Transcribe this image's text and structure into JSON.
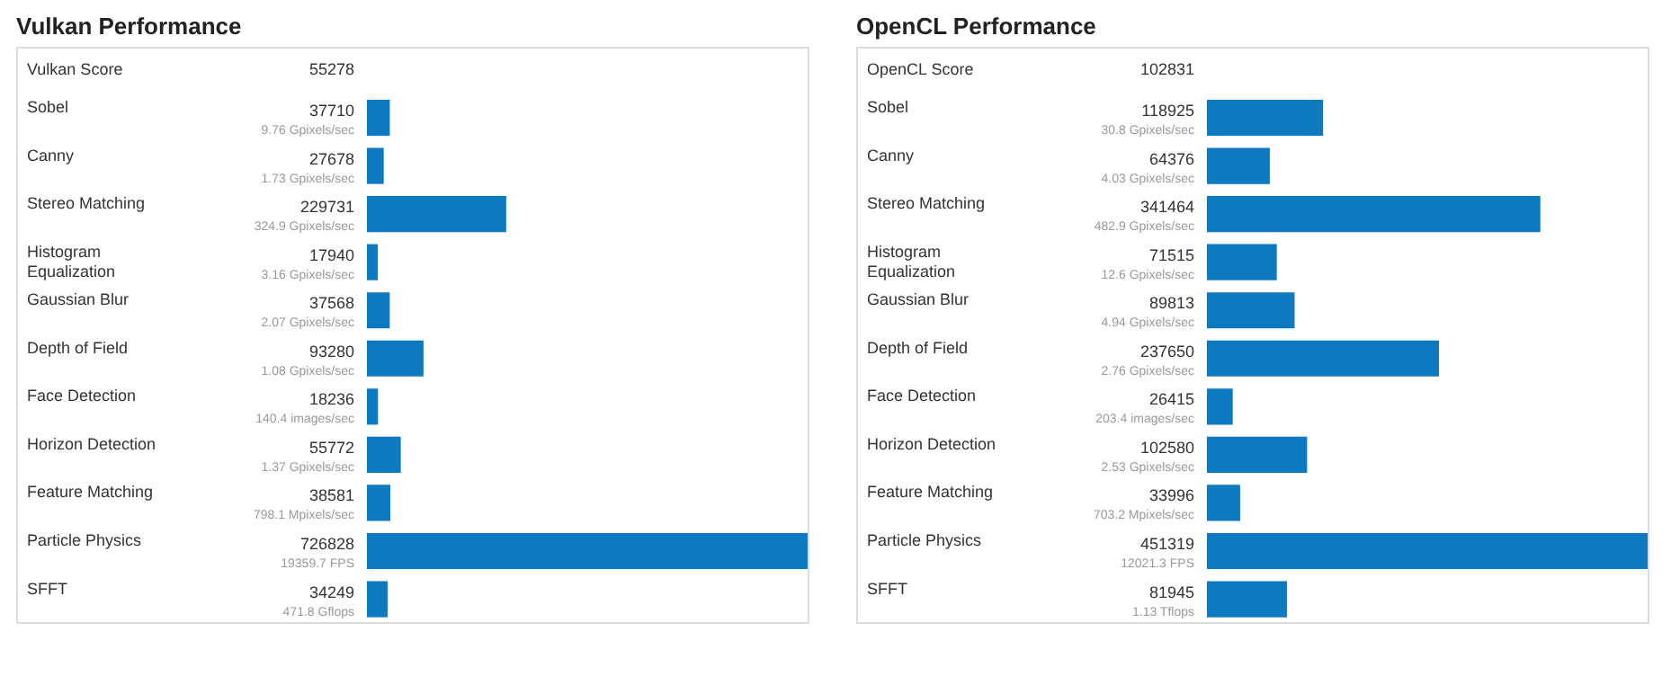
{
  "chart_data": [
    {
      "type": "bar",
      "orientation": "horizontal",
      "data_labels": true,
      "title": "Vulkan Performance",
      "color": "#0c79c1",
      "categories": [
        "Sobel",
        "Canny",
        "Stereo Matching",
        "Histogram\nEqualization",
        "Gaussian Blur",
        "Depth of Field",
        "Face Detection",
        "Horizon Detection",
        "Feature Matching",
        "Particle Physics",
        "SFFT"
      ],
      "values": [
        37710,
        27678,
        229731,
        17940,
        37568,
        93280,
        18236,
        55772,
        38581,
        726828,
        34249
      ],
      "annotations": [
        "Vulkan Score",
        "55278",
        "9.76 Gpixels/sec",
        "1.73 Gpixels/sec",
        "324.9 Gpixels/sec",
        "3.16 Gpixels/sec",
        "2.07 Gpixels/sec",
        "1.08 Gpixels/sec",
        "140.4 images/sec",
        "1.37 Gpixels/sec",
        "798.1 Mpixels/sec",
        "19359.7 FPS",
        "471.8 Gflops"
      ]
    },
    {
      "type": "bar",
      "orientation": "horizontal",
      "data_labels": true,
      "title": "OpenCL Performance",
      "color": "#0c79c1",
      "categories": [
        "Sobel",
        "Canny",
        "Stereo Matching",
        "Histogram\nEqualization",
        "Gaussian Blur",
        "Depth of Field",
        "Face Detection",
        "Horizon Detection",
        "Feature Matching",
        "Particle Physics",
        "SFFT"
      ],
      "values": [
        118925,
        64376,
        341464,
        71515,
        89813,
        237650,
        26415,
        102580,
        33996,
        451319,
        81945
      ],
      "annotations": [
        "OpenCL Score",
        "102831",
        "30.8 Gpixels/sec",
        "4.03 Gpixels/sec",
        "482.9 Gpixels/sec",
        "12.6 Gpixels/sec",
        "4.94 Gpixels/sec",
        "2.76 Gpixels/sec",
        "203.4 images/sec",
        "2.53 Gpixels/sec",
        "703.2 Mpixels/sec",
        "12021.3 FPS",
        "1.13 Tflops"
      ]
    }
  ]
}
